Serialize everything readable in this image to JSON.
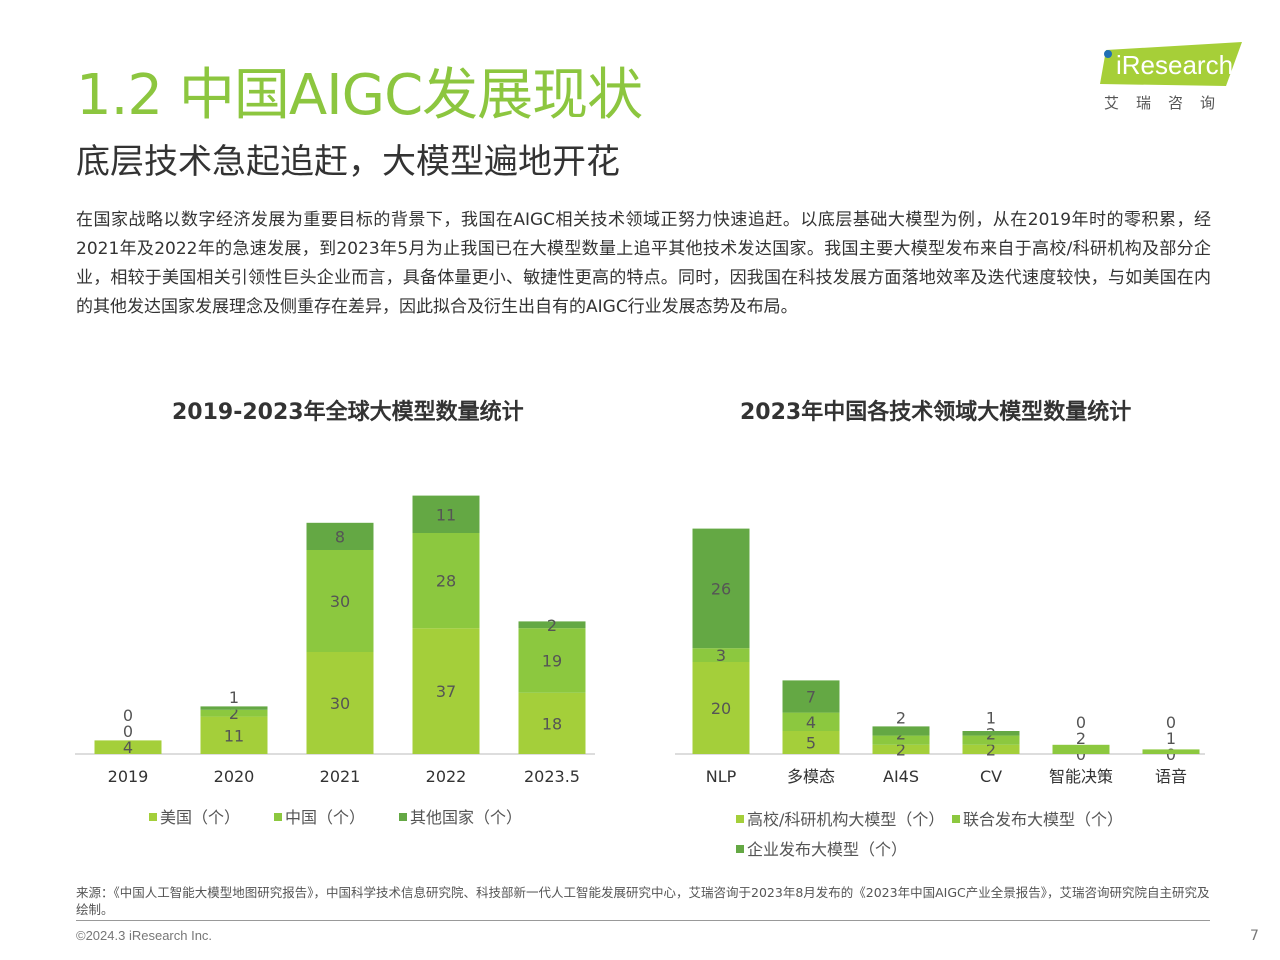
{
  "header": {
    "title": "1.2 中国AIGC发展现状",
    "subtitle": "底层技术急起追赶，大模型遍地开花"
  },
  "logo": {
    "name": "iResearch",
    "sub": "艾瑞咨询"
  },
  "body": {
    "paragraph": "在国家战略以数字经济发展为重要目标的背景下，我国在AIGC相关技术领域正努力快速追赶。以底层基础大模型为例，从在2019年时的零积累，经2021年及2022年的急速发展，到2023年5月为止我国已在大模型数量上追平其他技术发达国家。我国主要大模型发布来自于高校/科研机构及部分企业，相较于美国相关引领性巨头企业而言，具备体量更小、敏捷性更高的特点。同时，因我国在科技发展方面落地效率及迭代速度较快，与如美国在内的其他发达国家发展理念及侧重存在差异，因此拟合及衍生出自有的AIGC行业发展态势及布局。"
  },
  "colors": {
    "light": "#a4cf3a",
    "mid": "#8cc83f",
    "dark": "#64a844",
    "title_green": "#8cc63f"
  },
  "chart_data": [
    {
      "type": "bar",
      "stacked": true,
      "title": "2019-2023年全球大模型数量统计",
      "categories": [
        "2019",
        "2020",
        "2021",
        "2022",
        "2023.5"
      ],
      "series": [
        {
          "name": "美国（个）",
          "values": [
            4,
            11,
            30,
            37,
            18
          ],
          "color": "#a4cf3a"
        },
        {
          "name": "中国（个）",
          "values": [
            0,
            2,
            30,
            28,
            19
          ],
          "color": "#8cc83f"
        },
        {
          "name": "其他国家（个）",
          "values": [
            0,
            1,
            8,
            11,
            2
          ],
          "color": "#64a844"
        }
      ],
      "legend": "bottom"
    },
    {
      "type": "bar",
      "stacked": true,
      "title": "2023年中国各技术领域大模型数量统计",
      "categories": [
        "NLP",
        "多模态",
        "AI4S",
        "CV",
        "智能决策",
        "语音"
      ],
      "series": [
        {
          "name": "高校/科研机构大模型（个）",
          "values": [
            20,
            5,
            2,
            2,
            0,
            0
          ],
          "color": "#a4cf3a"
        },
        {
          "name": "联合发布大模型（个）",
          "values": [
            3,
            4,
            2,
            2,
            2,
            1
          ],
          "color": "#8cc83f"
        },
        {
          "name": "企业发布大模型（个）",
          "values": [
            26,
            7,
            2,
            1,
            0,
            0
          ],
          "color": "#64a844"
        }
      ],
      "legend": "bottom"
    }
  ],
  "footer": {
    "source": "来源：《中国人工智能大模型地图研究报告》，中国科学技术信息研究院、科技部新一代人工智能发展研究中心，艾瑞咨询于2023年8月发布的《2023年中国AIGC产业全景报告》，艾瑞咨询研究院自主研究及绘制。",
    "copyright": "©2024.3 iResearch Inc.",
    "page": "7"
  }
}
